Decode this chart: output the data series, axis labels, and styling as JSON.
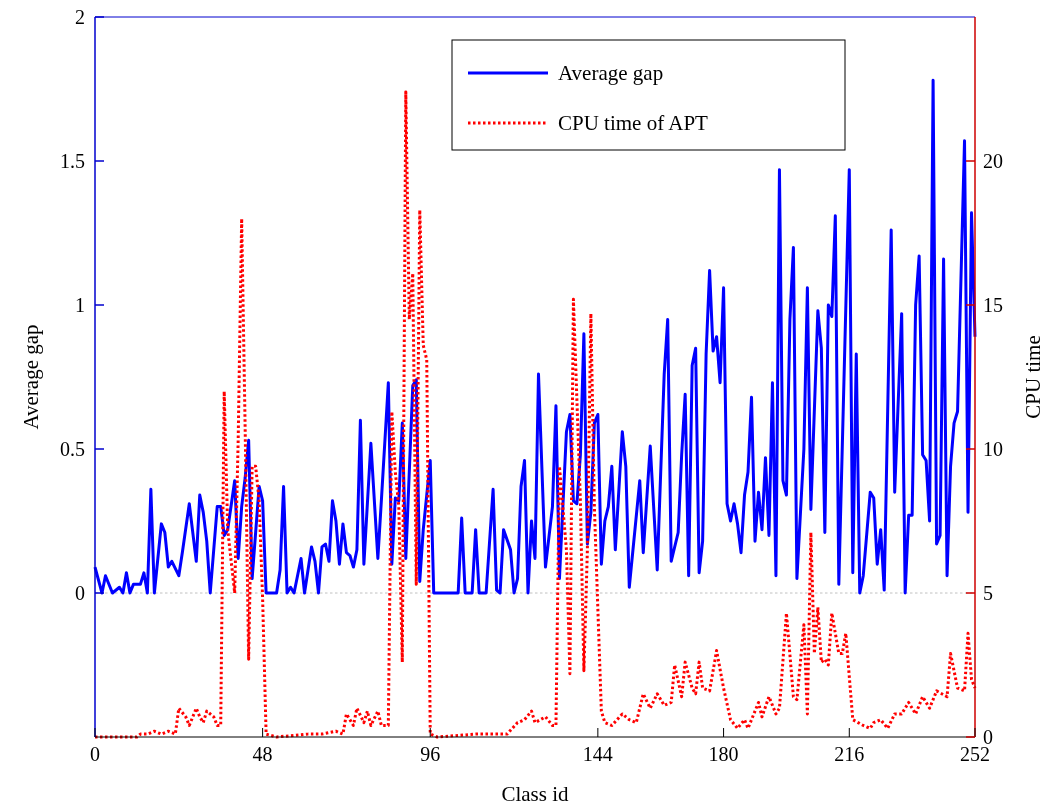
{
  "chart_data": {
    "type": "line",
    "xlabel": "Class id",
    "ylabel": "Average gap",
    "y2label": "CPU time",
    "xlim": [
      0,
      252
    ],
    "xticks": [
      0,
      48,
      96,
      144,
      180,
      216,
      252
    ],
    "ylim": [
      -0.5,
      2
    ],
    "yticks": [
      0,
      0.5,
      1,
      1.5,
      2
    ],
    "y2lim": [
      0,
      25
    ],
    "y2ticks": [
      0,
      5,
      10,
      15,
      20
    ],
    "legend": "top right",
    "grid": false,
    "ref_lines": [
      {
        "axis": "y",
        "value": 0,
        "color": "#c0c0c0",
        "line_style": "dotted"
      }
    ],
    "series": [
      {
        "name": "Average gap",
        "color": "#0000ff",
        "line_style": "solid",
        "x": [
          0,
          2,
          3,
          5,
          7,
          8,
          9,
          10,
          11,
          13,
          14,
          15,
          16,
          17,
          19,
          20,
          21,
          22,
          24,
          25,
          27,
          29,
          30,
          31,
          32,
          33,
          35,
          36,
          37,
          38,
          40,
          41,
          42,
          43,
          44,
          45,
          47,
          48,
          49,
          52,
          53,
          54,
          55,
          56,
          57,
          59,
          60,
          62,
          63,
          64,
          65,
          66,
          67,
          68,
          69,
          70,
          71,
          72,
          73,
          74,
          75,
          76,
          77,
          79,
          81,
          82,
          84,
          85,
          86,
          87,
          88,
          89,
          91,
          92,
          93,
          94,
          96,
          97,
          104,
          105,
          106,
          108,
          109,
          110,
          112,
          114,
          115,
          116,
          117,
          119,
          120,
          121,
          122,
          123,
          124,
          125,
          126,
          127,
          129,
          131,
          132,
          133,
          135,
          136,
          137,
          138,
          139,
          140,
          141,
          142,
          143,
          144,
          145,
          146,
          147,
          148,
          149,
          151,
          152,
          153,
          156,
          157,
          159,
          161,
          163,
          164,
          165,
          167,
          168,
          169,
          170,
          171,
          172,
          173,
          174,
          175,
          176,
          177,
          178,
          179,
          180,
          181,
          182,
          183,
          184,
          185,
          186,
          187,
          188,
          189,
          190,
          191,
          192,
          193,
          194,
          195,
          196,
          197,
          198,
          199,
          200,
          201,
          203,
          204,
          205,
          207,
          208,
          209,
          210,
          211,
          212,
          213,
          216,
          217,
          218,
          219,
          220,
          222,
          223,
          224,
          225,
          226,
          228,
          229,
          231,
          232,
          233,
          234,
          235,
          236,
          237,
          238,
          239,
          240,
          241,
          242,
          243,
          244,
          245,
          246,
          247,
          249,
          250,
          251,
          252
        ],
        "values": [
          0.09,
          0,
          0.06,
          0,
          0.02,
          0,
          0.07,
          0,
          0.03,
          0.03,
          0.07,
          0,
          0.36,
          0,
          0.24,
          0.21,
          0.09,
          0.11,
          0.06,
          0.14,
          0.31,
          0.11,
          0.34,
          0.28,
          0.18,
          0,
          0.3,
          0.3,
          0.2,
          0.22,
          0.39,
          0.12,
          0.3,
          0.4,
          0.53,
          0.05,
          0.37,
          0.32,
          0,
          0,
          0.08,
          0.37,
          0,
          0.02,
          0,
          0.12,
          0,
          0.16,
          0.11,
          0,
          0.16,
          0.17,
          0.11,
          0.32,
          0.25,
          0.1,
          0.24,
          0.14,
          0.13,
          0.09,
          0.15,
          0.6,
          0.1,
          0.52,
          0.12,
          0.32,
          0.73,
          0.1,
          0.33,
          0.32,
          0.59,
          0.12,
          0.72,
          0.74,
          0.04,
          0.22,
          0.46,
          0,
          0,
          0.26,
          0,
          0,
          0.22,
          0,
          0,
          0.36,
          0.01,
          0,
          0.22,
          0.15,
          0,
          0.05,
          0.37,
          0.46,
          0,
          0.25,
          0.12,
          0.76,
          0.09,
          0.3,
          0.65,
          0.05,
          0.56,
          0.62,
          0.32,
          0.31,
          0.48,
          0.9,
          0.17,
          0.28,
          0.59,
          0.62,
          0.1,
          0.25,
          0.3,
          0.44,
          0.15,
          0.56,
          0.44,
          0.02,
          0.39,
          0.14,
          0.51,
          0.08,
          0.76,
          0.95,
          0.11,
          0.21,
          0.48,
          0.69,
          0.06,
          0.79,
          0.85,
          0.07,
          0.18,
          0.83,
          1.12,
          0.84,
          0.89,
          0.73,
          1.06,
          0.31,
          0.25,
          0.31,
          0.24,
          0.14,
          0.34,
          0.42,
          0.68,
          0.18,
          0.35,
          0.22,
          0.47,
          0.2,
          0.73,
          0.06,
          1.47,
          0.39,
          0.34,
          0.95,
          1.2,
          0.05,
          0.5,
          1.06,
          0.29,
          0.98,
          0.85,
          0.21,
          1,
          0.96,
          1.31,
          0.03,
          1.47,
          0.07,
          0.83,
          0,
          0.06,
          0.35,
          0.33,
          0.1,
          0.22,
          0.01,
          1.26,
          0.35,
          0.97,
          0,
          0.27,
          0.27,
          1,
          1.17,
          0.48,
          0.46,
          0.25,
          1.78,
          0.17,
          0.2,
          1.16,
          0.06,
          0.44,
          0.59,
          0.63,
          1.57,
          0.28,
          1.32,
          0.89
        ]
      },
      {
        "name": "CPU time of APT",
        "color": "#ff0000",
        "line_style": "dotted",
        "axis": "y2",
        "x": [
          0,
          12,
          13,
          15,
          17,
          19,
          21,
          23,
          24,
          26,
          27,
          29,
          30,
          31,
          32,
          34,
          35,
          36,
          37,
          38,
          39,
          40,
          41,
          42,
          43,
          44,
          45,
          46,
          47,
          48,
          49,
          52,
          61,
          65,
          69,
          71,
          72,
          74,
          75,
          77,
          78,
          79,
          81,
          82,
          83,
          84,
          85,
          86,
          87,
          88,
          89,
          90,
          91,
          92,
          93,
          94,
          95,
          96,
          98,
          109,
          118,
          121,
          123,
          125,
          126,
          129,
          131,
          132,
          133,
          135,
          136,
          137,
          139,
          140,
          141,
          142,
          143,
          145,
          146,
          148,
          151,
          153,
          155,
          157,
          159,
          161,
          163,
          165,
          166,
          168,
          169,
          171,
          172,
          173,
          174,
          176,
          178,
          180,
          182,
          184,
          186,
          187,
          190,
          191,
          193,
          195,
          196,
          198,
          200,
          201,
          203,
          204,
          205,
          206,
          207,
          208,
          209,
          210,
          211,
          213,
          214,
          215,
          217,
          220,
          222,
          223,
          225,
          227,
          229,
          231,
          233,
          235,
          237,
          239,
          241,
          244,
          245,
          247,
          249,
          250,
          251,
          252
        ],
        "values": [
          0,
          0,
          0.1,
          0.1,
          0.2,
          0.1,
          0.2,
          0.1,
          1,
          0.7,
          0.4,
          1,
          0.7,
          0.5,
          0.9,
          0.7,
          0.4,
          0.4,
          12,
          7.2,
          6.1,
          5,
          10.3,
          18,
          10.7,
          2.7,
          9.4,
          9.4,
          8.2,
          4.8,
          0.1,
          0,
          0.1,
          0.1,
          0.2,
          0.1,
          0.8,
          0.4,
          1,
          0.5,
          0.9,
          0.4,
          0.9,
          0.4,
          0.4,
          0.4,
          11.3,
          9.2,
          8,
          2.6,
          22.4,
          14.5,
          16.1,
          5.3,
          18.3,
          13.6,
          13.1,
          0.1,
          0,
          0.1,
          0.1,
          0.5,
          0.6,
          0.9,
          0.5,
          0.7,
          0.4,
          0.4,
          9.4,
          6.5,
          2.2,
          15.2,
          8.2,
          2.3,
          6.5,
          14.7,
          8,
          0.9,
          0.5,
          0.4,
          0.8,
          0.6,
          0.5,
          1.5,
          1,
          1.5,
          1.1,
          1.2,
          2.5,
          1.4,
          2.6,
          1.7,
          1.5,
          2.6,
          1.7,
          1.6,
          3,
          1.7,
          0.6,
          0.3,
          0.6,
          0.3,
          1.2,
          0.7,
          1.4,
          0.8,
          1,
          4.3,
          1.4,
          1.3,
          3.9,
          0.8,
          7.1,
          2.9,
          4.5,
          2.6,
          2.7,
          2.5,
          4.3,
          2.9,
          2.9,
          3.6,
          0.6,
          0.4,
          0.3,
          0.5,
          0.6,
          0.3,
          0.8,
          0.8,
          1.2,
          0.8,
          1.4,
          1,
          1.6,
          1.4,
          2.9,
          1.7,
          1.6,
          3.6,
          2,
          1.7
        ]
      }
    ]
  }
}
